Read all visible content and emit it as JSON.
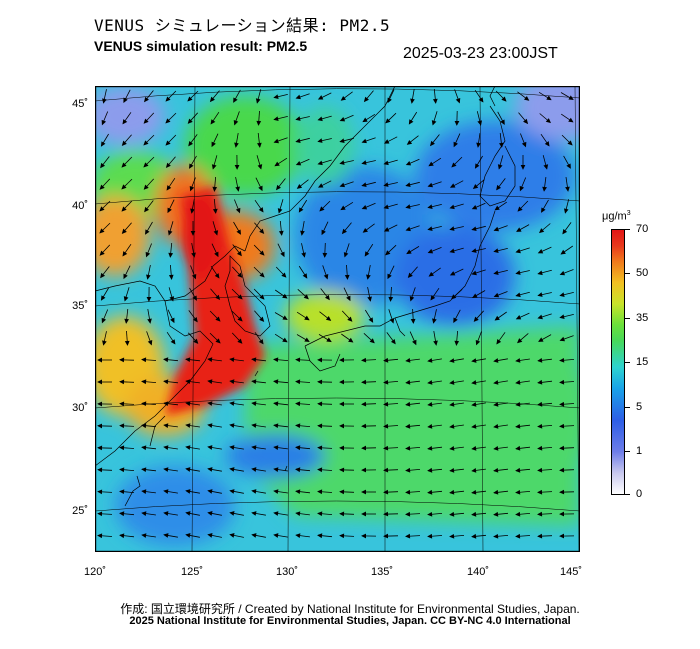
{
  "title_jp": "VENUS シミュレーション結果: PM2.5",
  "title_en": "VENUS simulation result: PM2.5",
  "timestamp": "2025-03-23 23:00JST",
  "axes": {
    "lat_labels": [
      "45˚",
      "40˚",
      "35˚",
      "30˚",
      "25˚"
    ],
    "lon_labels": [
      "120˚",
      "125˚",
      "130˚",
      "135˚",
      "140˚",
      "145˚"
    ]
  },
  "colorbar": {
    "unit": "μg/m",
    "unit_sup": "3",
    "ticks": [
      "70",
      "50",
      "35",
      "15",
      "5",
      "1",
      "0"
    ]
  },
  "credit_jp": "作成: 国立環境研究所 / Created by National Institute for Environmental Studies, Japan.",
  "credit_en": "2025 National Institute for Environmental Studies, Japan. CC BY-NC 4.0 International"
}
